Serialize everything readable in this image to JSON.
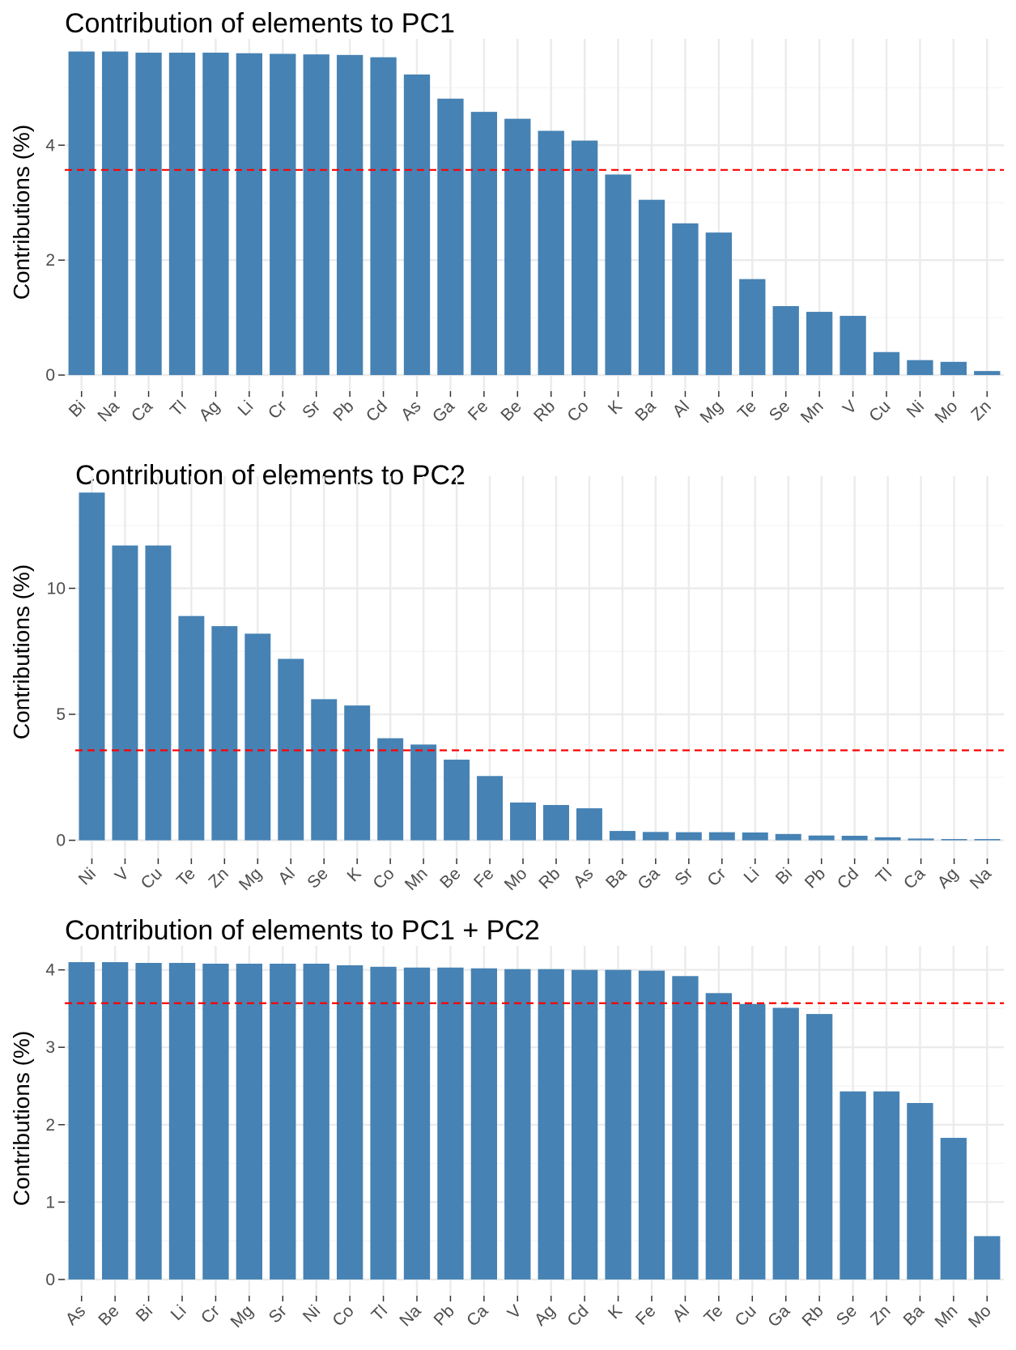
{
  "colors": {
    "bar": "#4682b4",
    "reference": "#ff0000",
    "grid_major": "#ebebeb",
    "grid_minor": "#f4f4f4",
    "tick": "#4d4d4d",
    "text": "#000000"
  },
  "chart_data": [
    {
      "type": "bar",
      "title": "Contribution of elements to PC1",
      "xlabel": "",
      "ylabel": "Contributions (%)",
      "categories": [
        "Bi",
        "Na",
        "Ca",
        "Tl",
        "Ag",
        "Li",
        "Cr",
        "Sr",
        "Pb",
        "Cd",
        "As",
        "Ga",
        "Fe",
        "Be",
        "Rb",
        "Co",
        "K",
        "Ba",
        "Al",
        "Mg",
        "Te",
        "Se",
        "Mn",
        "V",
        "Cu",
        "Ni",
        "Mo",
        "Zn"
      ],
      "values": [
        5.63,
        5.63,
        5.61,
        5.61,
        5.61,
        5.6,
        5.59,
        5.58,
        5.57,
        5.53,
        5.23,
        4.81,
        4.58,
        4.46,
        4.25,
        4.08,
        3.49,
        3.05,
        2.64,
        2.48,
        1.67,
        1.2,
        1.1,
        1.03,
        0.4,
        0.26,
        0.23,
        0.07
      ],
      "ylim": [
        -0.28,
        5.85
      ],
      "yticks": [
        0,
        2,
        4
      ],
      "reference_line": 3.57
    },
    {
      "type": "bar",
      "title": "Contribution of elements to PC2",
      "xlabel": "",
      "ylabel": "Contributions (%)",
      "categories": [
        "Ni",
        "V",
        "Cu",
        "Te",
        "Zn",
        "Mg",
        "Al",
        "Se",
        "K",
        "Co",
        "Mn",
        "Be",
        "Fe",
        "Mo",
        "Rb",
        "As",
        "Ba",
        "Ga",
        "Sr",
        "Cr",
        "Li",
        "Bi",
        "Pb",
        "Cd",
        "Tl",
        "Ca",
        "Ag",
        "Na"
      ],
      "values": [
        13.8,
        11.7,
        11.7,
        8.9,
        8.5,
        8.2,
        7.2,
        5.6,
        5.35,
        4.05,
        3.8,
        3.2,
        2.55,
        1.5,
        1.4,
        1.27,
        0.37,
        0.33,
        0.32,
        0.32,
        0.31,
        0.25,
        0.19,
        0.18,
        0.12,
        0.07,
        0.05,
        0.05
      ],
      "ylim": [
        -0.72,
        14.45
      ],
      "yticks": [
        0,
        5,
        10
      ],
      "reference_line": 3.57
    },
    {
      "type": "bar",
      "title": "Contribution of elements to PC1 + PC2",
      "xlabel": "",
      "ylabel": "Contributions (%)",
      "categories": [
        "As",
        "Be",
        "Bi",
        "Li",
        "Cr",
        "Mg",
        "Sr",
        "Ni",
        "Co",
        "Tl",
        "Na",
        "Pb",
        "Ca",
        "V",
        "Ag",
        "Cd",
        "K",
        "Fe",
        "Al",
        "Te",
        "Cu",
        "Ga",
        "Rb",
        "Se",
        "Zn",
        "Ba",
        "Mn",
        "Mo"
      ],
      "values": [
        4.1,
        4.1,
        4.09,
        4.09,
        4.08,
        4.08,
        4.08,
        4.08,
        4.06,
        4.04,
        4.03,
        4.03,
        4.02,
        4.01,
        4.01,
        4.0,
        4.0,
        3.99,
        3.92,
        3.7,
        3.56,
        3.51,
        3.43,
        2.43,
        2.43,
        2.28,
        1.83,
        0.56
      ],
      "ylim": [
        -0.21,
        4.31
      ],
      "yticks": [
        0,
        1,
        2,
        3,
        4
      ],
      "reference_line": 3.57
    }
  ]
}
